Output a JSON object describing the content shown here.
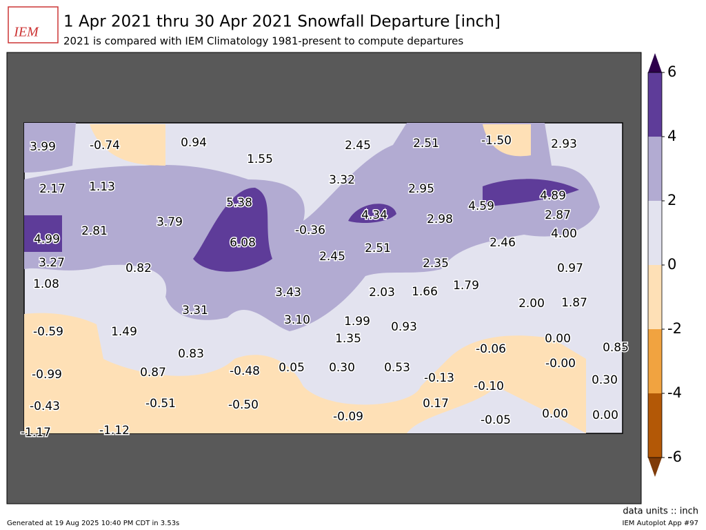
{
  "header": {
    "logo": "IEM",
    "title": "1 Apr 2021 thru 30 Apr 2021 Snowfall Departure [inch]",
    "subtitle": "2021 is compared with IEM Climatology 1981-present to compute departures"
  },
  "map": {
    "labels": [
      "3.99",
      "-0.74",
      "0.94",
      "1.55",
      "2.45",
      "2.51",
      "-1.50",
      "2.93",
      "2.17",
      "1.13",
      "3.32",
      "2.95",
      "5.38",
      "4.89",
      "3.79",
      "4.34",
      "4.59",
      "2.87",
      "-0.36",
      "2.98",
      "4.00",
      "4.99",
      "2.81",
      "6.08",
      "2.51",
      "2.46",
      "3.27",
      "2.45",
      "2.35",
      "0.82",
      "0.97",
      "1.08",
      "1.79",
      "3.43",
      "2.03",
      "1.66",
      "2.00",
      "1.87",
      "3.31",
      "3.10",
      "1.99",
      "0.93",
      "-0.59",
      "1.49",
      "1.35",
      "0.00",
      "-0.06",
      "0.85",
      "0.83",
      "-0.48",
      "0.05",
      "0.30",
      "0.53",
      "-0.00",
      "-0.99",
      "0.87",
      "-0.13",
      "-0.10",
      "0.30",
      "-0.43",
      "-0.51",
      "-0.50",
      "0.17",
      "-0.09",
      "0.00",
      "0.00",
      "-0.05",
      "-1.17",
      "-1.12"
    ]
  },
  "colorbar": {
    "ticks": [
      -6,
      -4,
      -2,
      0,
      2,
      4,
      6
    ],
    "colors": [
      "#b35806",
      "#f1a340",
      "#fee0b6",
      "#e3e3ef",
      "#b2abd2",
      "#5e3c99"
    ],
    "under_color": "#7f3b08",
    "over_color": "#2d004b"
  },
  "footer": {
    "generated": "Generated at 19 Aug 2025 10:40 PM CDT in 3.53s",
    "units": "data units :: inch",
    "app": "IEM Autoplot App #97"
  }
}
